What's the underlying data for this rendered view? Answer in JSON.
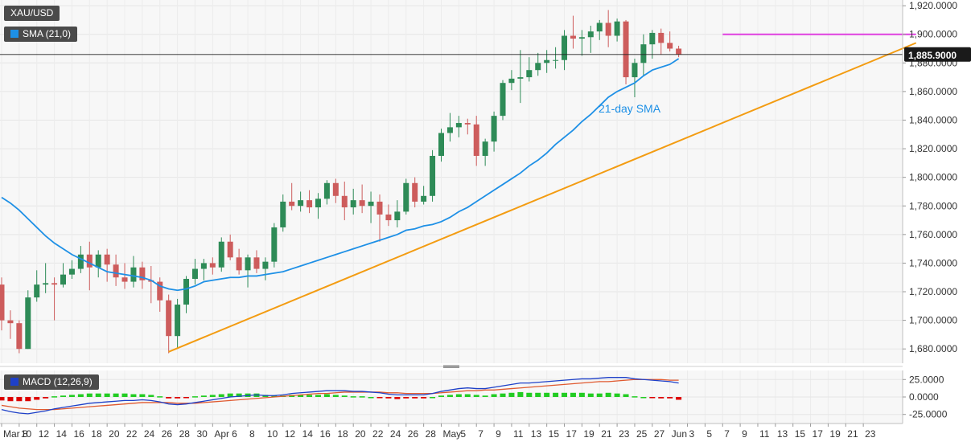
{
  "symbol": "XAU/USD",
  "indicators": {
    "sma_label": "SMA (21,0)",
    "macd_label": "MACD (12,26,9)"
  },
  "colors": {
    "background": "#f7f7f7",
    "up_candle": "#2e8b57",
    "down_candle": "#cd5c5c",
    "sma": "#1e90e6",
    "trendline": "#f39c12",
    "resistance": "#e040e0",
    "macd_line": "#1e40c8",
    "signal_line": "#e05a30",
    "hist_positive": "#22cc22",
    "hist_negative": "#dd0000",
    "price_badge": "#1a1a1a"
  },
  "chart_data": [
    {
      "type": "candlestick",
      "title": "XAU/USD",
      "x_tick_labels": [
        "Mar 8",
        "10",
        "12",
        "14",
        "16",
        "18",
        "20",
        "22",
        "24",
        "26",
        "28",
        "30",
        "Apr",
        "6",
        "8",
        "10",
        "12",
        "14",
        "16",
        "18",
        "20",
        "22",
        "24",
        "26",
        "28",
        "May",
        "5",
        "7",
        "9",
        "11",
        "13",
        "15",
        "17",
        "19",
        "21",
        "23",
        "25",
        "27",
        "Jun",
        "3",
        "5",
        "7",
        "9",
        "11",
        "13",
        "15",
        "17",
        "19",
        "21",
        "23"
      ],
      "y_tick_labels": [
        "1,680.0000",
        "1,700.0000",
        "1,720.0000",
        "1,740.0000",
        "1,760.0000",
        "1,780.0000",
        "1,800.0000",
        "1,820.0000",
        "1,840.0000",
        "1,860.0000",
        "1,880.0000",
        "1,900.0000",
        "1,920.0000"
      ],
      "ylim": [
        1670,
        1924
      ],
      "grid": true,
      "last_price_label": "1,885.9000",
      "last_price": 1885.9,
      "annotations": [
        {
          "text": "21-day SMA"
        }
      ],
      "candles": [
        {
          "o": 1725,
          "h": 1730,
          "l": 1693,
          "c": 1700
        },
        {
          "o": 1700,
          "h": 1707,
          "l": 1687,
          "c": 1698
        },
        {
          "o": 1698,
          "h": 1700,
          "l": 1677,
          "c": 1680
        },
        {
          "o": 1680,
          "h": 1721,
          "l": 1680,
          "c": 1716
        },
        {
          "o": 1716,
          "h": 1735,
          "l": 1713,
          "c": 1725
        },
        {
          "o": 1725,
          "h": 1740,
          "l": 1719,
          "c": 1726
        },
        {
          "o": 1726,
          "h": 1730,
          "l": 1700,
          "c": 1725
        },
        {
          "o": 1725,
          "h": 1740,
          "l": 1723,
          "c": 1732
        },
        {
          "o": 1732,
          "h": 1742,
          "l": 1729,
          "c": 1736
        },
        {
          "o": 1736,
          "h": 1752,
          "l": 1733,
          "c": 1746
        },
        {
          "o": 1746,
          "h": 1755,
          "l": 1721,
          "c": 1737
        },
        {
          "o": 1737,
          "h": 1749,
          "l": 1730,
          "c": 1746
        },
        {
          "o": 1746,
          "h": 1750,
          "l": 1727,
          "c": 1739
        },
        {
          "o": 1739,
          "h": 1746,
          "l": 1724,
          "c": 1730
        },
        {
          "o": 1730,
          "h": 1740,
          "l": 1722,
          "c": 1727
        },
        {
          "o": 1727,
          "h": 1745,
          "l": 1723,
          "c": 1737
        },
        {
          "o": 1737,
          "h": 1741,
          "l": 1722,
          "c": 1728
        },
        {
          "o": 1728,
          "h": 1738,
          "l": 1712,
          "c": 1727
        },
        {
          "o": 1727,
          "h": 1730,
          "l": 1706,
          "c": 1714
        },
        {
          "o": 1714,
          "h": 1718,
          "l": 1677,
          "c": 1689
        },
        {
          "o": 1689,
          "h": 1715,
          "l": 1680,
          "c": 1711
        },
        {
          "o": 1711,
          "h": 1731,
          "l": 1705,
          "c": 1729
        },
        {
          "o": 1729,
          "h": 1743,
          "l": 1725,
          "c": 1736
        },
        {
          "o": 1736,
          "h": 1743,
          "l": 1728,
          "c": 1740
        },
        {
          "o": 1740,
          "h": 1744,
          "l": 1732,
          "c": 1737
        },
        {
          "o": 1737,
          "h": 1758,
          "l": 1734,
          "c": 1755
        },
        {
          "o": 1755,
          "h": 1760,
          "l": 1742,
          "c": 1744
        },
        {
          "o": 1744,
          "h": 1750,
          "l": 1732,
          "c": 1735
        },
        {
          "o": 1735,
          "h": 1746,
          "l": 1723,
          "c": 1744
        },
        {
          "o": 1744,
          "h": 1749,
          "l": 1733,
          "c": 1736
        },
        {
          "o": 1736,
          "h": 1744,
          "l": 1728,
          "c": 1741
        },
        {
          "o": 1741,
          "h": 1768,
          "l": 1737,
          "c": 1765
        },
        {
          "o": 1765,
          "h": 1788,
          "l": 1762,
          "c": 1783
        },
        {
          "o": 1783,
          "h": 1796,
          "l": 1777,
          "c": 1780
        },
        {
          "o": 1780,
          "h": 1790,
          "l": 1776,
          "c": 1784
        },
        {
          "o": 1784,
          "h": 1791,
          "l": 1775,
          "c": 1779
        },
        {
          "o": 1779,
          "h": 1789,
          "l": 1771,
          "c": 1785
        },
        {
          "o": 1785,
          "h": 1798,
          "l": 1781,
          "c": 1796
        },
        {
          "o": 1796,
          "h": 1799,
          "l": 1782,
          "c": 1787
        },
        {
          "o": 1787,
          "h": 1797,
          "l": 1770,
          "c": 1779
        },
        {
          "o": 1779,
          "h": 1792,
          "l": 1774,
          "c": 1784
        },
        {
          "o": 1784,
          "h": 1795,
          "l": 1775,
          "c": 1780
        },
        {
          "o": 1780,
          "h": 1790,
          "l": 1768,
          "c": 1783
        },
        {
          "o": 1783,
          "h": 1788,
          "l": 1755,
          "c": 1774
        },
        {
          "o": 1774,
          "h": 1781,
          "l": 1766,
          "c": 1770
        },
        {
          "o": 1770,
          "h": 1784,
          "l": 1765,
          "c": 1776
        },
        {
          "o": 1776,
          "h": 1799,
          "l": 1774,
          "c": 1796
        },
        {
          "o": 1796,
          "h": 1800,
          "l": 1779,
          "c": 1783
        },
        {
          "o": 1783,
          "h": 1794,
          "l": 1781,
          "c": 1787
        },
        {
          "o": 1787,
          "h": 1819,
          "l": 1783,
          "c": 1815
        },
        {
          "o": 1815,
          "h": 1834,
          "l": 1811,
          "c": 1831
        },
        {
          "o": 1831,
          "h": 1845,
          "l": 1825,
          "c": 1835
        },
        {
          "o": 1835,
          "h": 1843,
          "l": 1828,
          "c": 1838
        },
        {
          "o": 1838,
          "h": 1841,
          "l": 1830,
          "c": 1837
        },
        {
          "o": 1837,
          "h": 1843,
          "l": 1808,
          "c": 1815
        },
        {
          "o": 1815,
          "h": 1827,
          "l": 1808,
          "c": 1825
        },
        {
          "o": 1825,
          "h": 1846,
          "l": 1818,
          "c": 1843
        },
        {
          "o": 1843,
          "h": 1868,
          "l": 1840,
          "c": 1866
        },
        {
          "o": 1866,
          "h": 1875,
          "l": 1861,
          "c": 1869
        },
        {
          "o": 1869,
          "h": 1889,
          "l": 1852,
          "c": 1870
        },
        {
          "o": 1870,
          "h": 1884,
          "l": 1867,
          "c": 1875
        },
        {
          "o": 1875,
          "h": 1887,
          "l": 1871,
          "c": 1880
        },
        {
          "o": 1880,
          "h": 1889,
          "l": 1873,
          "c": 1882
        },
        {
          "o": 1882,
          "h": 1891,
          "l": 1876,
          "c": 1882
        },
        {
          "o": 1882,
          "h": 1903,
          "l": 1875,
          "c": 1899
        },
        {
          "o": 1899,
          "h": 1913,
          "l": 1890,
          "c": 1897
        },
        {
          "o": 1897,
          "h": 1903,
          "l": 1885,
          "c": 1898
        },
        {
          "o": 1898,
          "h": 1906,
          "l": 1887,
          "c": 1902
        },
        {
          "o": 1902,
          "h": 1910,
          "l": 1896,
          "c": 1908
        },
        {
          "o": 1908,
          "h": 1917,
          "l": 1891,
          "c": 1899
        },
        {
          "o": 1899,
          "h": 1911,
          "l": 1895,
          "c": 1909
        },
        {
          "o": 1909,
          "h": 1910,
          "l": 1865,
          "c": 1870
        },
        {
          "o": 1870,
          "h": 1883,
          "l": 1856,
          "c": 1880
        },
        {
          "o": 1880,
          "h": 1900,
          "l": 1871,
          "c": 1893
        },
        {
          "o": 1893,
          "h": 1903,
          "l": 1883,
          "c": 1901
        },
        {
          "o": 1901,
          "h": 1904,
          "l": 1886,
          "c": 1894
        },
        {
          "o": 1894,
          "h": 1902,
          "l": 1888,
          "c": 1890
        },
        {
          "o": 1890,
          "h": 1892,
          "l": 1884,
          "c": 1886
        }
      ],
      "sma21": [
        1786,
        1782,
        1777,
        1771,
        1765,
        1759,
        1754,
        1750,
        1746,
        1743,
        1740,
        1737,
        1734,
        1733,
        1732,
        1731,
        1730,
        1728,
        1724,
        1722,
        1721,
        1722,
        1724,
        1727,
        1728,
        1729,
        1730,
        1730,
        1731,
        1731,
        1732,
        1733,
        1734,
        1736,
        1738,
        1740,
        1742,
        1744,
        1746,
        1748,
        1750,
        1752,
        1754,
        1756,
        1758,
        1760,
        1763,
        1764,
        1766,
        1767,
        1769,
        1772,
        1776,
        1779,
        1783,
        1787,
        1791,
        1795,
        1799,
        1803,
        1808,
        1812,
        1817,
        1823,
        1828,
        1833,
        1839,
        1844,
        1850,
        1856,
        1860,
        1863,
        1866,
        1871,
        1875,
        1877,
        1879,
        1883
      ],
      "trendline": {
        "from": {
          "day_index": 19,
          "price": 1678
        },
        "to": {
          "day_index": 104,
          "price": 1894
        }
      },
      "resistance": {
        "from_day_index": 82,
        "to_day_index": 104,
        "price": 1900
      }
    },
    {
      "type": "macd",
      "title": "MACD (12,26,9)",
      "y_tick_labels": [
        "25.0000",
        "0.0000",
        "-25.0000"
      ],
      "ylim": [
        -38,
        38
      ],
      "macd_line": [
        -18,
        -21,
        -23,
        -24,
        -22,
        -20,
        -17,
        -15,
        -13,
        -11,
        -9,
        -8,
        -7,
        -6,
        -5,
        -5,
        -4,
        -5,
        -7,
        -10,
        -11,
        -10,
        -8,
        -6,
        -4,
        -2,
        0,
        1,
        2,
        3,
        2,
        2,
        3,
        5,
        6,
        7,
        8,
        9,
        9,
        9,
        8,
        8,
        7,
        6,
        4,
        3,
        3,
        3,
        3,
        5,
        8,
        10,
        12,
        13,
        12,
        12,
        14,
        16,
        18,
        20,
        20,
        21,
        22,
        23,
        24,
        25,
        26,
        26,
        27,
        28,
        28,
        28,
        26,
        25,
        24,
        23,
        22,
        20
      ],
      "signal_line": [
        -12,
        -14,
        -16,
        -17,
        -18,
        -18,
        -18,
        -17,
        -16,
        -15,
        -14,
        -13,
        -12,
        -11,
        -10,
        -9,
        -8,
        -8,
        -8,
        -8,
        -9,
        -9,
        -9,
        -8,
        -7,
        -6,
        -5,
        -4,
        -3,
        -2,
        -1,
        0,
        1,
        2,
        3,
        4,
        5,
        5,
        6,
        7,
        7,
        7,
        7,
        7,
        6,
        6,
        5,
        5,
        5,
        5,
        6,
        7,
        8,
        9,
        9,
        10,
        10,
        11,
        12,
        13,
        14,
        15,
        16,
        17,
        18,
        19,
        20,
        21,
        22,
        22,
        23,
        24,
        25,
        25,
        25,
        25,
        24,
        24
      ],
      "histogram": [
        -5,
        -6,
        -6,
        -6,
        -4,
        -2,
        1,
        2,
        3,
        4,
        5,
        5,
        5,
        5,
        5,
        4,
        4,
        3,
        1,
        -2,
        -2,
        -1,
        1,
        2,
        3,
        4,
        5,
        5,
        5,
        5,
        3,
        2,
        2,
        3,
        3,
        3,
        3,
        4,
        3,
        2,
        1,
        1,
        0,
        -1,
        -2,
        -3,
        -2,
        -2,
        -2,
        0,
        2,
        3,
        4,
        4,
        3,
        2,
        4,
        5,
        6,
        7,
        6,
        6,
        6,
        6,
        6,
        6,
        6,
        5,
        5,
        6,
        5,
        4,
        1,
        0,
        -1,
        -2,
        -2,
        -4
      ]
    }
  ]
}
